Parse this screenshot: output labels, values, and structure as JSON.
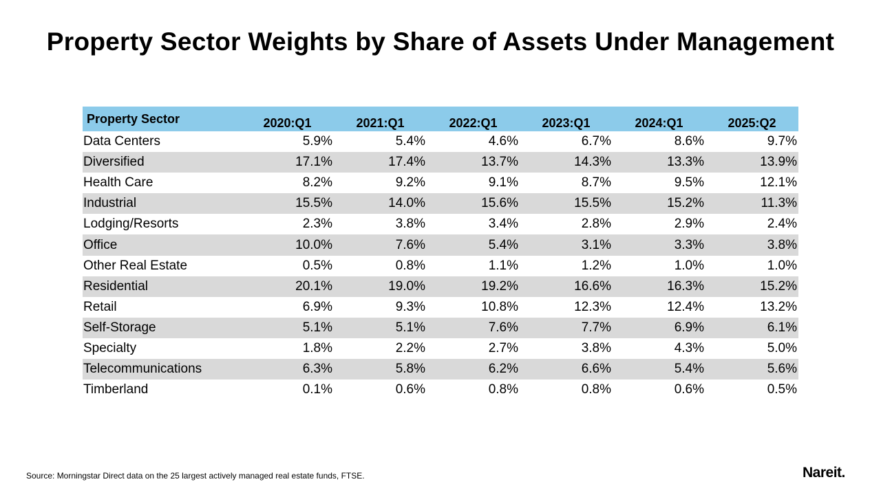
{
  "chart_data": {
    "type": "table",
    "title": "Property Sector Weights by Share of Assets Under Management",
    "columns": [
      "Property Sector",
      "2020:Q1",
      "2021:Q1",
      "2022:Q1",
      "2023:Q1",
      "2024:Q1",
      "2025:Q2"
    ],
    "rows": [
      {
        "sector": "Data Centers",
        "values": [
          "5.9%",
          "5.4%",
          "4.6%",
          "6.7%",
          "8.6%",
          "9.7%"
        ]
      },
      {
        "sector": "Diversified",
        "values": [
          "17.1%",
          "17.4%",
          "13.7%",
          "14.3%",
          "13.3%",
          "13.9%"
        ]
      },
      {
        "sector": "Health Care",
        "values": [
          "8.2%",
          "9.2%",
          "9.1%",
          "8.7%",
          "9.5%",
          "12.1%"
        ]
      },
      {
        "sector": "Industrial",
        "values": [
          "15.5%",
          "14.0%",
          "15.6%",
          "15.5%",
          "15.2%",
          "11.3%"
        ]
      },
      {
        "sector": "Lodging/Resorts",
        "values": [
          "2.3%",
          "3.8%",
          "3.4%",
          "2.8%",
          "2.9%",
          "2.4%"
        ]
      },
      {
        "sector": "Office",
        "values": [
          "10.0%",
          "7.6%",
          "5.4%",
          "3.1%",
          "3.3%",
          "3.8%"
        ]
      },
      {
        "sector": "Other Real Estate",
        "values": [
          "0.5%",
          "0.8%",
          "1.1%",
          "1.2%",
          "1.0%",
          "1.0%"
        ]
      },
      {
        "sector": "Residential",
        "values": [
          "20.1%",
          "19.0%",
          "19.2%",
          "16.6%",
          "16.3%",
          "15.2%"
        ]
      },
      {
        "sector": "Retail",
        "values": [
          "6.9%",
          "9.3%",
          "10.8%",
          "12.3%",
          "12.4%",
          "13.2%"
        ]
      },
      {
        "sector": "Self-Storage",
        "values": [
          "5.1%",
          "5.1%",
          "7.6%",
          "7.7%",
          "6.9%",
          "6.1%"
        ]
      },
      {
        "sector": "Specialty",
        "values": [
          "1.8%",
          "2.2%",
          "2.7%",
          "3.8%",
          "4.3%",
          "5.0%"
        ]
      },
      {
        "sector": "Telecommunications",
        "values": [
          "6.3%",
          "5.8%",
          "6.2%",
          "6.6%",
          "5.4%",
          "5.6%"
        ]
      },
      {
        "sector": "Timberland",
        "values": [
          "0.1%",
          "0.6%",
          "0.8%",
          "0.8%",
          "0.6%",
          "0.5%"
        ]
      }
    ],
    "header_color": "#8ccbea",
    "stripe_color": "#d9d9d9"
  },
  "footer": {
    "source": "Source: Morningstar Direct data on the 25 largest actively managed real estate funds, FTSE.",
    "logo": "Nareit."
  }
}
